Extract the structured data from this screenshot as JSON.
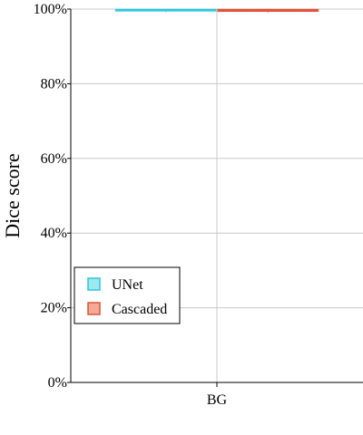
{
  "chart_data": {
    "type": "box",
    "title": "",
    "xlabel": "",
    "ylabel": "Dice score",
    "categories": [
      "BG"
    ],
    "ylim": [
      0,
      100
    ],
    "y_ticks": [
      "0%",
      "20%",
      "40%",
      "60%",
      "80%",
      "100%"
    ],
    "y_tick_values": [
      0,
      20,
      40,
      60,
      80,
      100
    ],
    "grid": true,
    "legend_position": "lower-left",
    "series": [
      {
        "name": "UNet",
        "color": "#2bc8dc",
        "fill": "#9ee8f0",
        "values": [
          {
            "category": "BG",
            "min": 99.2,
            "q1": 99.5,
            "median": 99.7,
            "q3": 99.9,
            "max": 100
          }
        ]
      },
      {
        "name": "Cascaded",
        "color": "#e0533a",
        "fill": "#f4a896",
        "values": [
          {
            "category": "BG",
            "min": 99.1,
            "q1": 99.4,
            "median": 99.6,
            "q3": 99.9,
            "max": 100
          }
        ]
      }
    ]
  }
}
